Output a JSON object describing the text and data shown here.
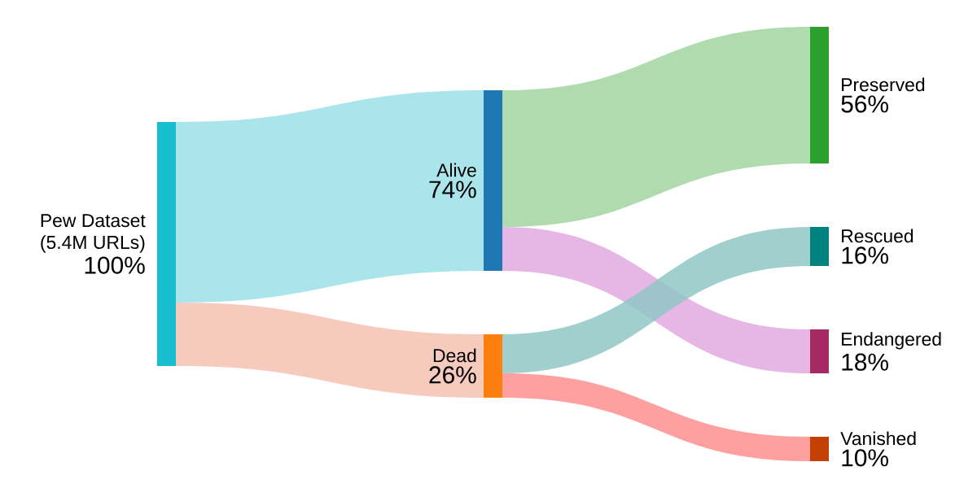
{
  "chart_data": {
    "type": "other",
    "categories": [
      "Pew Dataset (5.4M URLs)",
      "Alive",
      "Dead",
      "Preserved",
      "Rescued",
      "Endangered",
      "Vanished"
    ],
    "values": [
      100,
      null,
      null,
      null,
      null,
      null,
      null
    ],
    "value_labels": [
      "100%",
      null,
      null,
      null,
      null,
      null,
      null
    ],
    "colors": [
      "#17becf",
      "#1f77b4",
      "#ff7f0e",
      "#2ca02c",
      "#00827f",
      "#a52a62",
      "#c44000"
    ],
    "series": [
      {
        "values": [
          null,
          74,
          26,
          null,
          null,
          null,
          null
        ],
        "value_labels": [
          null,
          "74%",
          "26%",
          null,
          null,
          null,
          null
        ],
        "colors": [
          null,
          "#9ae1e6",
          "#f4c1b2",
          null,
          null,
          null,
          null
        ]
      },
      {
        "values": [
          null,
          null,
          null,
          56,
          null,
          18,
          null
        ],
        "value_labels": [
          null,
          null,
          null,
          "56%",
          null,
          "18%",
          null
        ],
        "colors": [
          null,
          null,
          null,
          "#a1d5a0",
          null,
          "#e2a9e0",
          null
        ]
      },
      {
        "values": [
          null,
          null,
          null,
          null,
          16,
          null,
          10
        ],
        "value_labels": [
          null,
          null,
          null,
          null,
          "16%",
          null,
          "10%"
        ],
        "colors": [
          null,
          null,
          null,
          null,
          "#8fc7c6",
          null,
          "#ff8f8f"
        ]
      }
    ]
  }
}
